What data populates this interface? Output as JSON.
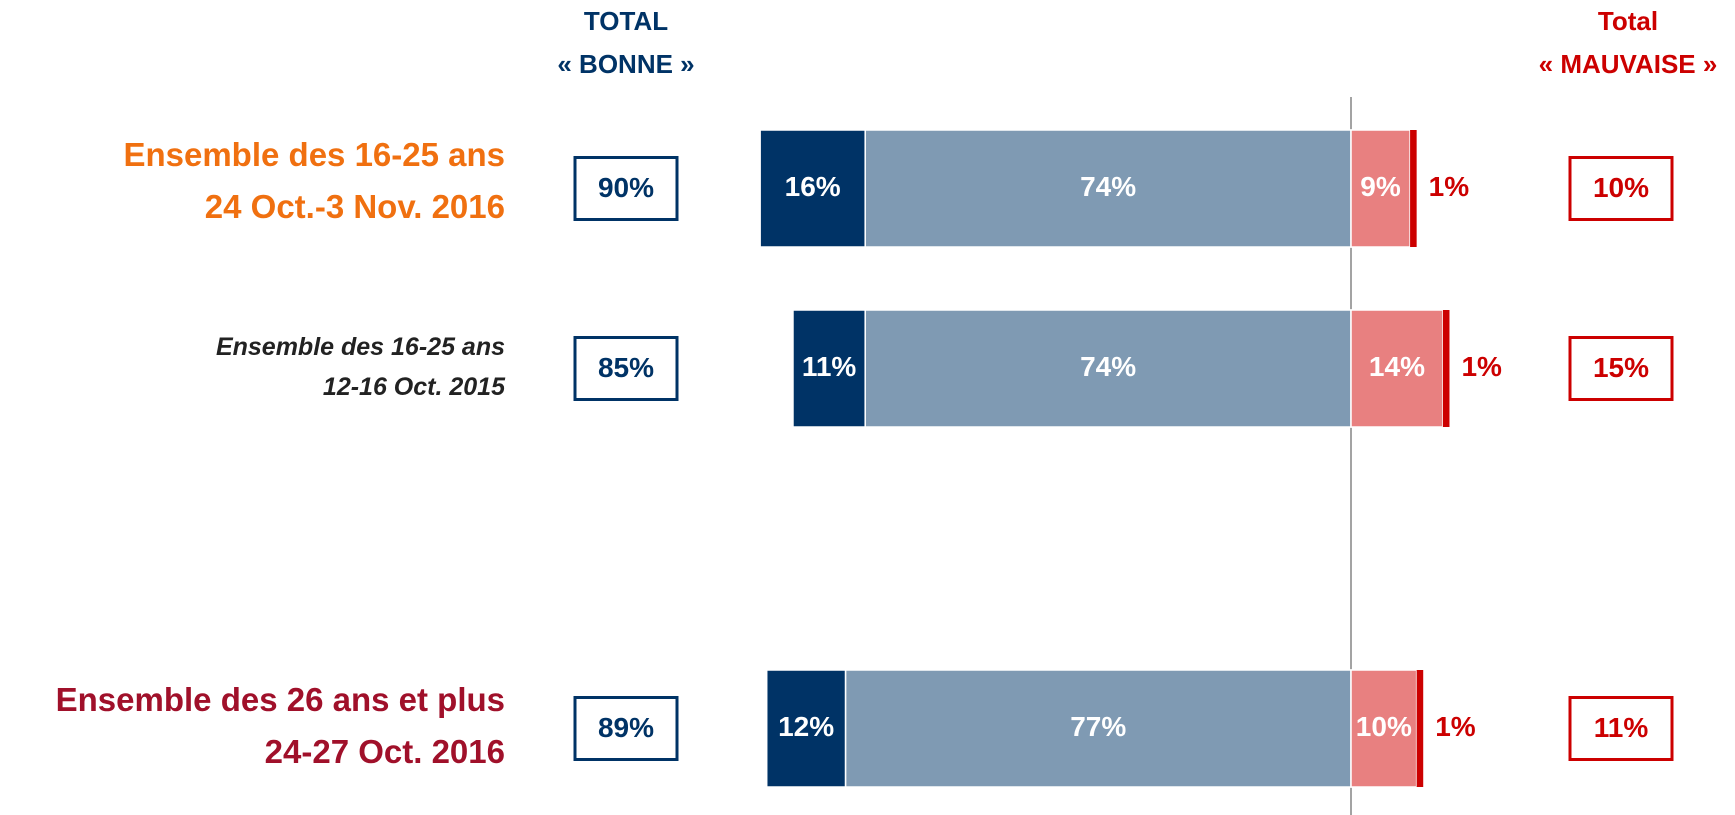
{
  "chart_data": {
    "type": "diverging_bar",
    "categories": [
      [
        "Ensemble des 16-25 ans",
        "24 Oct.-3 Nov. 2016"
      ],
      [
        "Ensemble des 16-25 ans",
        "12-16 Oct. 2015"
      ],
      [
        "Ensemble des 26 ans et plus",
        "24-27 Oct. 2016"
      ]
    ],
    "category_colors": [
      "#f07010",
      "#222222",
      "#a0102a"
    ],
    "category_styles": [
      "bold",
      "italic",
      "bold"
    ],
    "series": [
      {
        "color": "#003366",
        "side": "left",
        "values": [
          16,
          11,
          12
        ],
        "value_labels": [
          "16%",
          "11%",
          "12%"
        ]
      },
      {
        "color": "#7f9ab3",
        "side": "left",
        "values": [
          74,
          74,
          77
        ],
        "value_labels": [
          "74%",
          "74%",
          "77%"
        ]
      },
      {
        "color": "#e88080",
        "side": "right",
        "values": [
          9,
          14,
          10
        ],
        "value_labels": [
          "9%",
          "14%",
          "10%"
        ]
      },
      {
        "color": "#cc0000",
        "side": "right",
        "values": [
          1,
          1,
          1
        ],
        "value_labels": [
          "1%",
          "1%",
          "1%"
        ]
      }
    ],
    "total_bonne": {
      "title": [
        "TOTAL",
        "« BONNE »"
      ],
      "color": "#003366",
      "values": [
        90,
        85,
        89
      ],
      "value_labels": [
        "90%",
        "85%",
        "89%"
      ]
    },
    "total_mauvaise": {
      "title": [
        "Total",
        "« MAUVAISE »"
      ],
      "color": "#cc0000",
      "values": [
        10,
        15,
        11
      ],
      "value_labels": [
        "10%",
        "15%",
        "11%"
      ]
    }
  }
}
